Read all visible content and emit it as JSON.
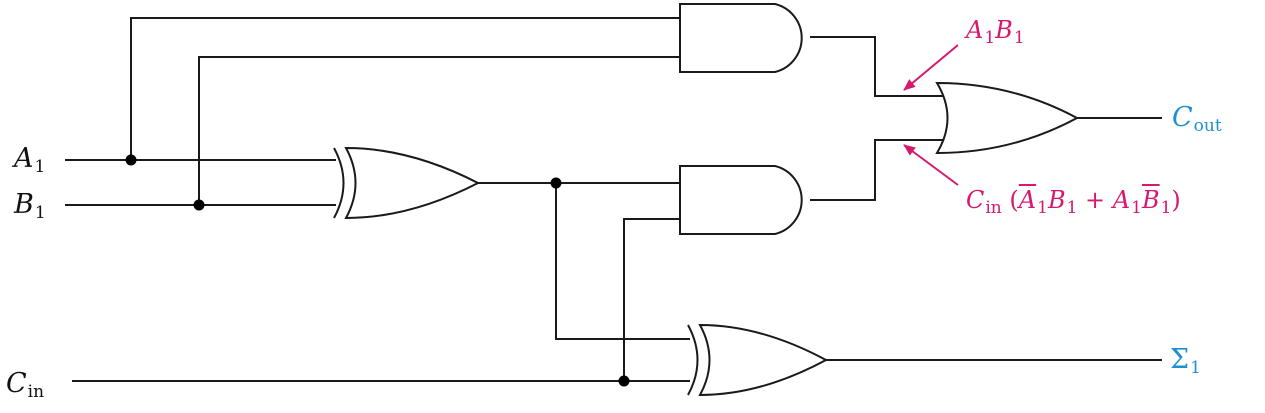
{
  "inputs": {
    "a1": {
      "letter": "A",
      "sub": "1"
    },
    "b1": {
      "letter": "B",
      "sub": "1"
    },
    "cin": {
      "letter": "C",
      "sub": "in"
    }
  },
  "outputs": {
    "cout": {
      "letter": "C",
      "sub": "out"
    },
    "sum": {
      "letter": "Σ",
      "sub": "1"
    }
  },
  "annotations": {
    "and1_term": {
      "a": "A",
      "a_sub": "1",
      "b": "B",
      "b_sub": "1"
    },
    "and2_term": {
      "c": "C",
      "c_sub": "in",
      "open": " (",
      "t1a": "A",
      "t1a_sub": "1",
      "t1b": "B",
      "t1b_sub": "1",
      "plus": " + ",
      "t2a": "A",
      "t2a_sub": "1",
      "t2b": "B",
      "t2b_sub": "1",
      "close": ")"
    }
  },
  "colors": {
    "wire": "#1a1a1a",
    "output_label": "#1e90d0",
    "annotation": "#d6196e"
  }
}
